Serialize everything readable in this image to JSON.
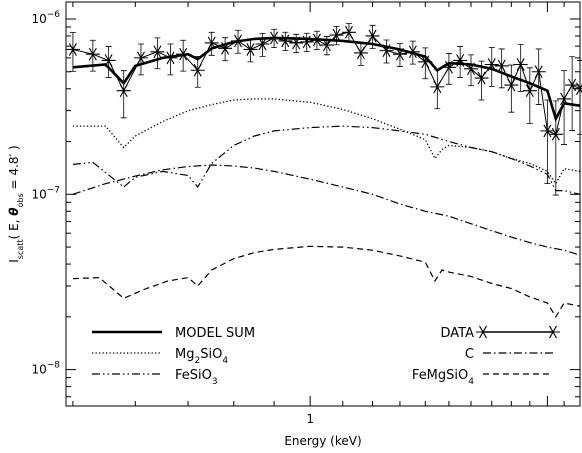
{
  "chart_data": {
    "type": "line",
    "title": "",
    "xlabel": "Energy (keV)",
    "ylabel_parts": [
      "I",
      "scatt",
      "( E, ",
      "θ",
      "obs",
      " = 4.8′ )"
    ],
    "xscale": "log",
    "yscale": "log",
    "xlim": [
      0.49,
      2.2
    ],
    "ylim": [
      6.2e-09,
      1.25e-06
    ],
    "xticks_labeled": [
      {
        "value": 1,
        "label": "1"
      }
    ],
    "yticks_labeled": [
      {
        "value": 1e-08,
        "base": "10",
        "exp": "−8"
      },
      {
        "value": 1e-07,
        "base": "10",
        "exp": "−7"
      },
      {
        "value": 1e-06,
        "base": "10",
        "exp": "−6"
      }
    ],
    "legend": [
      {
        "series": "model_sum",
        "label": "MODEL SUM",
        "position": "left"
      },
      {
        "series": "mg2sio4",
        "label_parts": [
          "Mg",
          "2",
          "SiO",
          "4"
        ],
        "position": "left"
      },
      {
        "series": "fesio3",
        "label_parts": [
          "FeSiO",
          "3"
        ],
        "position": "left"
      },
      {
        "series": "data",
        "label": "DATA",
        "position": "right"
      },
      {
        "series": "c",
        "label": "C",
        "position": "right"
      },
      {
        "series": "femgsio4",
        "label_parts": [
          "FeMgSiO",
          "4"
        ],
        "position": "right"
      }
    ],
    "series": [
      {
        "id": "model_sum",
        "style": "solid-thick",
        "x": [
          0.5,
          0.55,
          0.58,
          0.6,
          0.65,
          0.7,
          0.72,
          0.75,
          0.8,
          0.85,
          0.9,
          1.0,
          1.1,
          1.2,
          1.3,
          1.4,
          1.45,
          1.5,
          1.6,
          1.7,
          1.8,
          1.9,
          2.0,
          2.05,
          2.1,
          2.2
        ],
        "y": [
          5.3e-07,
          5.5e-07,
          4.3e-07,
          5.4e-07,
          6e-07,
          6.3e-07,
          5.9e-07,
          6.8e-07,
          7.4e-07,
          7.7e-07,
          7.8e-07,
          7.7e-07,
          7.5e-07,
          7.2e-07,
          6.7e-07,
          6.1e-07,
          5.1e-07,
          5.6e-07,
          5.5e-07,
          5.2e-07,
          4.7e-07,
          4.3e-07,
          3.9e-07,
          2.7e-07,
          3.3e-07,
          3.2e-07
        ]
      },
      {
        "id": "mg2sio4",
        "style": "dotted",
        "x": [
          0.5,
          0.55,
          0.58,
          0.6,
          0.65,
          0.7,
          0.75,
          0.8,
          0.85,
          0.9,
          1.0,
          1.1,
          1.2,
          1.3,
          1.4,
          1.44,
          1.47,
          1.5,
          1.6,
          1.7,
          1.8,
          1.9,
          2.0,
          2.05,
          2.1,
          2.2
        ],
        "y": [
          2.45e-07,
          2.45e-07,
          1.85e-07,
          2.15e-07,
          2.6e-07,
          3e-07,
          3.25e-07,
          3.45e-07,
          3.5e-07,
          3.5e-07,
          3.35e-07,
          3.05e-07,
          2.7e-07,
          2.35e-07,
          2.05e-07,
          1.6e-07,
          1.8e-07,
          1.9e-07,
          1.85e-07,
          1.75e-07,
          1.6e-07,
          1.5e-07,
          1.35e-07,
          1.15e-07,
          1.4e-07,
          1.35e-07
        ]
      },
      {
        "id": "c",
        "style": "dash-dot",
        "x": [
          0.5,
          0.55,
          0.6,
          0.65,
          0.7,
          0.75,
          0.8,
          0.85,
          0.9,
          1.0,
          1.1,
          1.2,
          1.3,
          1.4,
          1.5,
          1.6,
          1.7,
          1.8,
          1.9,
          2.0,
          2.1,
          2.2
        ],
        "y": [
          1e-07,
          1.15e-07,
          1.27e-07,
          1.38e-07,
          1.44e-07,
          1.47e-07,
          1.45e-07,
          1.41e-07,
          1.35e-07,
          1.22e-07,
          1.1e-07,
          1e-07,
          8.8e-08,
          8e-08,
          7.5e-08,
          6.8e-08,
          6.2e-08,
          5.7e-08,
          5.3e-08,
          5e-08,
          4.8e-08,
          4.5e-08
        ]
      },
      {
        "id": "fesio3",
        "style": "dash-dot-dot",
        "x": [
          0.5,
          0.53,
          0.58,
          0.6,
          0.65,
          0.7,
          0.72,
          0.75,
          0.8,
          0.85,
          0.9,
          1.0,
          1.1,
          1.2,
          1.3,
          1.4,
          1.5,
          1.6,
          1.7,
          1.8,
          1.9,
          2.0,
          2.05,
          2.1,
          2.2
        ],
        "y": [
          1.48e-07,
          1.52e-07,
          1.1e-07,
          1.25e-07,
          1.35e-07,
          1.28e-07,
          1.1e-07,
          1.5e-07,
          1.9e-07,
          2.15e-07,
          2.3e-07,
          2.4e-07,
          2.45e-07,
          2.4e-07,
          2.3e-07,
          2.2e-07,
          2e-07,
          1.85e-07,
          1.75e-07,
          1.6e-07,
          1.45e-07,
          1.3e-07,
          1.05e-07,
          1.05e-07,
          1e-07
        ]
      },
      {
        "id": "femgsio4",
        "style": "dashed",
        "x": [
          0.5,
          0.54,
          0.58,
          0.62,
          0.66,
          0.7,
          0.72,
          0.75,
          0.8,
          0.85,
          0.9,
          1.0,
          1.1,
          1.2,
          1.3,
          1.4,
          1.44,
          1.47,
          1.5,
          1.6,
          1.7,
          1.8,
          1.9,
          2.0,
          2.05,
          2.1,
          2.2
        ],
        "y": [
          3.3e-08,
          3.35e-08,
          2.55e-08,
          2.9e-08,
          3.2e-08,
          3.35e-08,
          3e-08,
          3.7e-08,
          4.3e-08,
          4.65e-08,
          4.85e-08,
          5.05e-08,
          5e-08,
          4.8e-08,
          4.45e-08,
          4.1e-08,
          3.2e-08,
          3.7e-08,
          3.6e-08,
          3.4e-08,
          3.1e-08,
          2.9e-08,
          2.6e-08,
          2.4e-08,
          2e-08,
          2.4e-08,
          2.3e-08
        ]
      },
      {
        "id": "data",
        "style": "thin-with-star-markers-and-errorbars",
        "x": [
          0.5,
          0.53,
          0.555,
          0.58,
          0.61,
          0.64,
          0.665,
          0.69,
          0.72,
          0.75,
          0.78,
          0.81,
          0.84,
          0.87,
          0.9,
          0.93,
          0.96,
          0.99,
          1.02,
          1.05,
          1.08,
          1.12,
          1.16,
          1.2,
          1.25,
          1.3,
          1.35,
          1.4,
          1.45,
          1.5,
          1.55,
          1.6,
          1.65,
          1.7,
          1.75,
          1.8,
          1.85,
          1.9,
          1.95,
          2.0,
          2.05,
          2.1,
          2.15,
          2.2
        ],
        "y": [
          6.7e-07,
          6.3e-07,
          5.8e-07,
          3.9e-07,
          6e-07,
          6.5e-07,
          6e-07,
          6.3e-07,
          5.1e-07,
          7.3e-07,
          6.8e-07,
          7.5e-07,
          6.7e-07,
          7.2e-07,
          7.8e-07,
          7.5e-07,
          7.3e-07,
          7.4e-07,
          7.6e-07,
          7.1e-07,
          8.1e-07,
          8.4e-07,
          6.4e-07,
          8e-07,
          6.6e-07,
          6.3e-07,
          6.5e-07,
          5.7e-07,
          4.1e-07,
          5.3e-07,
          5.8e-07,
          5.2e-07,
          4.6e-07,
          5.5e-07,
          5.4e-07,
          4.2e-07,
          5.5e-07,
          3.9e-07,
          5e-07,
          2.3e-07,
          2.2e-07,
          3.5e-07,
          4.2e-07,
          4e-07
        ],
        "err_frac": [
          0.25,
          0.2,
          0.2,
          0.3,
          0.2,
          0.2,
          0.2,
          0.2,
          0.2,
          0.15,
          0.15,
          0.15,
          0.15,
          0.15,
          0.12,
          0.12,
          0.12,
          0.12,
          0.12,
          0.12,
          0.12,
          0.12,
          0.15,
          0.15,
          0.15,
          0.15,
          0.15,
          0.2,
          0.25,
          0.2,
          0.2,
          0.2,
          0.25,
          0.25,
          0.25,
          0.3,
          0.3,
          0.35,
          0.35,
          0.5,
          0.55,
          0.45,
          0.45,
          0.45
        ]
      }
    ]
  }
}
